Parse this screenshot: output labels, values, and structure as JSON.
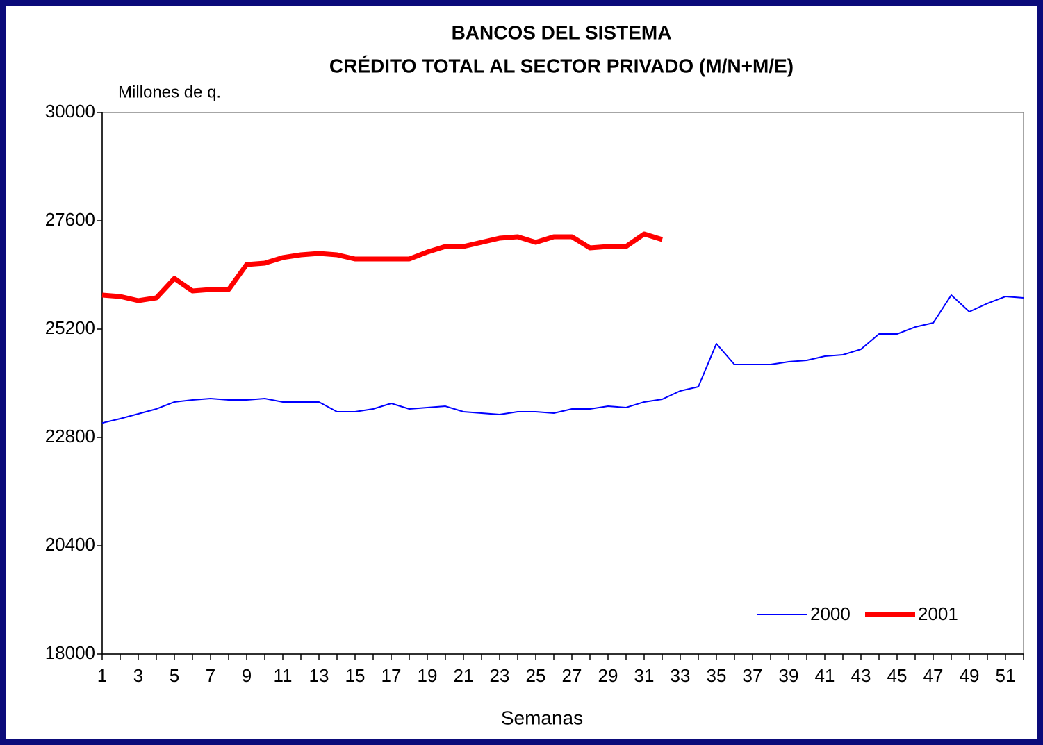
{
  "chart_data": {
    "type": "line",
    "title": "BANCOS DEL SISTEMA",
    "subtitle": "CRÉDITO TOTAL AL SECTOR PRIVADO (M/N+M/E)",
    "y_label": "Millones de q.",
    "x_label": "Semanas",
    "categories": [
      1,
      null,
      3,
      null,
      5,
      null,
      7,
      null,
      9,
      null,
      11,
      null,
      13,
      null,
      15,
      null,
      17,
      null,
      19,
      null,
      21,
      null,
      23,
      null,
      25,
      null,
      27,
      null,
      29,
      null,
      31,
      null,
      33,
      null,
      35,
      null,
      37,
      null,
      39,
      null,
      41,
      null,
      43,
      null,
      45,
      null,
      47,
      null,
      49,
      null,
      51,
      null
    ],
    "series": [
      {
        "name": "2000",
        "color": "#0000ff",
        "width": 2,
        "values": [
          23120,
          23215,
          23323,
          23431,
          23585,
          23631,
          23662,
          23631,
          23631,
          23662,
          23585,
          23585,
          23585,
          23369,
          23369,
          23431,
          23554,
          23431,
          23462,
          23492,
          23369,
          23338,
          23308,
          23369,
          23369,
          23338,
          23431,
          23431,
          23492,
          23462,
          23585,
          23646,
          23831,
          23923,
          24877,
          24415,
          24415,
          24415,
          24477,
          24508,
          24600,
          24631,
          24754,
          25092,
          25092,
          25246,
          25338,
          25954,
          25585,
          25769,
          25923,
          25892
        ]
      },
      {
        "name": "2001",
        "color": "#ff0000",
        "width": 7,
        "values": [
          25954,
          25923,
          25831,
          25892,
          26323,
          26046,
          26077,
          26077,
          26631,
          26662,
          26785,
          26846,
          26877,
          26846,
          26754,
          26754,
          26754,
          26754,
          26908,
          27031,
          27031,
          27123,
          27215,
          27246,
          27123,
          27246,
          27246,
          27000,
          27031,
          27031,
          27308,
          27185,
          null,
          null,
          null,
          null,
          null,
          null,
          null,
          null,
          null,
          null,
          null,
          null,
          null,
          null,
          null,
          null,
          null,
          null,
          null,
          null
        ]
      }
    ],
    "ylim": [
      18000,
      30000
    ],
    "yticks": [
      18000,
      20400,
      22800,
      25200,
      27600,
      30000
    ],
    "grid": false,
    "legend": "lower right"
  }
}
